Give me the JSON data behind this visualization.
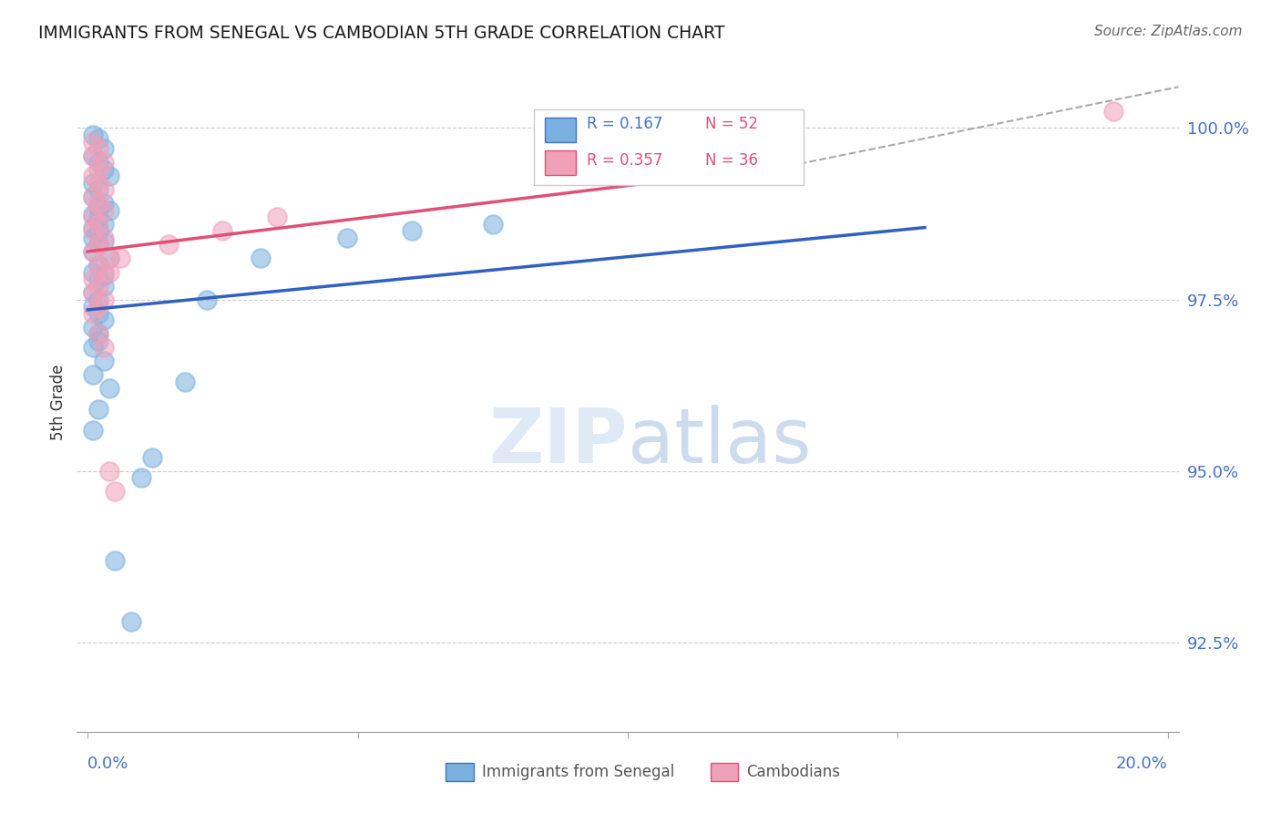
{
  "title": "IMMIGRANTS FROM SENEGAL VS CAMBODIAN 5TH GRADE CORRELATION CHART",
  "source": "Source: ZipAtlas.com",
  "ylabel": "5th Grade",
  "ytick_values": [
    92.5,
    95.0,
    97.5,
    100.0
  ],
  "ymin": 91.2,
  "ymax": 100.8,
  "xmin": -0.002,
  "xmax": 0.202,
  "blue_color": "#7ab0e0",
  "pink_color": "#f0a0b8",
  "blue_line_color": "#3060c0",
  "pink_line_color": "#e05075",
  "dash_color": "#aaaaaa",
  "watermark_color": "#dce8f5",
  "background_color": "#ffffff",
  "legend_r_blue": "0.167",
  "legend_n_blue": "52",
  "legend_r_pink": "0.357",
  "legend_n_pink": "36",
  "blue_line_x0": 0.0,
  "blue_line_y0": 97.35,
  "blue_line_x1": 0.155,
  "blue_line_y1": 98.55,
  "pink_line_x0": 0.0,
  "pink_line_y0": 98.2,
  "pink_line_x1": 0.13,
  "pink_line_y1": 99.45,
  "dash_line_x0": 0.13,
  "dash_line_y0": 99.45,
  "dash_line_x1": 0.202,
  "dash_line_y1": 100.6,
  "blue_pts_x": [
    0.001,
    0.002,
    0.003,
    0.001,
    0.002,
    0.003,
    0.004,
    0.001,
    0.002,
    0.001,
    0.003,
    0.002,
    0.004,
    0.001,
    0.002,
    0.003,
    0.001,
    0.002,
    0.001,
    0.003,
    0.002,
    0.001,
    0.004,
    0.002,
    0.001,
    0.003,
    0.002,
    0.003,
    0.001,
    0.002,
    0.001,
    0.002,
    0.003,
    0.001,
    0.002,
    0.002,
    0.001,
    0.003,
    0.001,
    0.004,
    0.002,
    0.001,
    0.018,
    0.022,
    0.032,
    0.048,
    0.06,
    0.075,
    0.012,
    0.01,
    0.005,
    0.008
  ],
  "blue_pts_y": [
    99.9,
    99.85,
    99.7,
    99.6,
    99.5,
    99.4,
    99.3,
    99.2,
    99.1,
    99.0,
    98.9,
    98.85,
    98.8,
    98.75,
    98.7,
    98.6,
    98.55,
    98.5,
    98.4,
    98.35,
    98.3,
    98.2,
    98.1,
    98.0,
    97.9,
    97.85,
    97.8,
    97.7,
    97.6,
    97.5,
    97.4,
    97.3,
    97.2,
    97.1,
    97.0,
    96.9,
    96.8,
    96.6,
    96.4,
    96.2,
    95.9,
    95.6,
    96.3,
    97.5,
    98.1,
    98.4,
    98.5,
    98.6,
    95.2,
    94.9,
    93.7,
    92.8
  ],
  "pink_pts_x": [
    0.001,
    0.002,
    0.001,
    0.003,
    0.002,
    0.001,
    0.002,
    0.003,
    0.001,
    0.002,
    0.003,
    0.001,
    0.002,
    0.001,
    0.003,
    0.002,
    0.001,
    0.004,
    0.002,
    0.003,
    0.001,
    0.002,
    0.001,
    0.003,
    0.002,
    0.001,
    0.015,
    0.025,
    0.035,
    0.006,
    0.004,
    0.002,
    0.003,
    0.19,
    0.004,
    0.005
  ],
  "pink_pts_y": [
    99.8,
    99.7,
    99.6,
    99.5,
    99.4,
    99.3,
    99.2,
    99.1,
    99.0,
    98.9,
    98.8,
    98.7,
    98.6,
    98.5,
    98.4,
    98.3,
    98.2,
    98.1,
    98.0,
    97.9,
    97.8,
    97.7,
    97.6,
    97.5,
    97.4,
    97.3,
    98.3,
    98.5,
    98.7,
    98.1,
    97.9,
    97.0,
    96.8,
    100.25,
    95.0,
    94.7
  ]
}
